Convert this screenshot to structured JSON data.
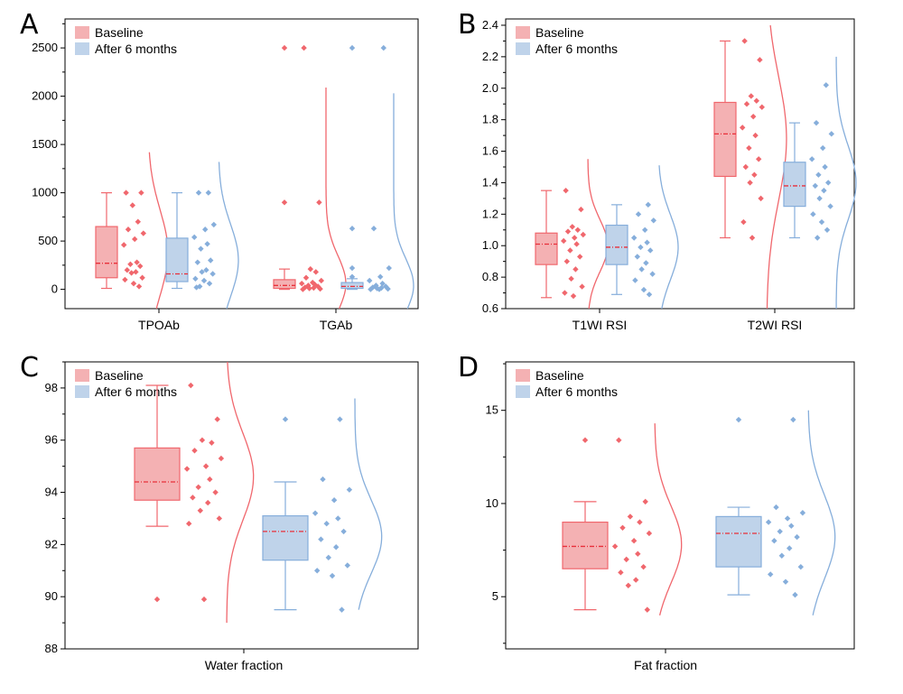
{
  "colors": {
    "baseline_fill": "#f4b1b3",
    "baseline_edge": "#f0676d",
    "after_fill": "#bfd3ea",
    "after_edge": "#86aedb",
    "median_line": "#e8303a",
    "axis": "#000000"
  },
  "legend": {
    "baseline": "Baseline",
    "after": "After 6 months"
  },
  "chart_data": [
    {
      "panel": "A",
      "type": "box",
      "categories": [
        "TPOAb",
        "TGAb"
      ],
      "ylim": [
        -200,
        2800
      ],
      "yticks": [
        0,
        500,
        1000,
        1500,
        2000,
        2500
      ],
      "series": [
        {
          "name": "Baseline",
          "groups": [
            {
              "box": {
                "whislo": 10,
                "q1": 120,
                "med": 270,
                "q3": 650,
                "whishi": 1000,
                "mean": 380
              },
              "points": [
                1000,
                1000,
                870,
                700,
                620,
                580,
                520,
                460,
                280,
                260,
                240,
                200,
                180,
                170,
                120,
                100,
                60,
                30
              ],
              "density_max": 1420
            },
            {
              "box": {
                "whislo": 0,
                "q1": 10,
                "med": 40,
                "q3": 100,
                "whishi": 210,
                "mean": 60
              },
              "points": [
                2500,
                900,
                210,
                180,
                120,
                90,
                70,
                60,
                50,
                40,
                30,
                20,
                15,
                10,
                5,
                0
              ],
              "density_max": 2090
            }
          ]
        },
        {
          "name": "After 6 months",
          "groups": [
            {
              "box": {
                "whislo": 10,
                "q1": 80,
                "med": 160,
                "q3": 530,
                "whishi": 1000,
                "mean": 300
              },
              "points": [
                1000,
                1000,
                670,
                620,
                540,
                470,
                420,
                300,
                280,
                200,
                180,
                160,
                110,
                90,
                60,
                30,
                20
              ],
              "density_max": 1320
            },
            {
              "box": {
                "whislo": 0,
                "q1": 10,
                "med": 30,
                "q3": 70,
                "whishi": 110,
                "mean": 40
              },
              "points": [
                2500,
                630,
                220,
                130,
                90,
                60,
                40,
                30,
                20,
                15,
                10,
                5,
                0,
                0
              ],
              "density_max": 2030
            }
          ]
        }
      ]
    },
    {
      "panel": "B",
      "type": "box",
      "categories": [
        "T1WI RSI",
        "T2WI RSI"
      ],
      "ylim": [
        0.6,
        2.44
      ],
      "yticks": [
        0.6,
        0.8,
        1.0,
        1.2,
        1.4,
        1.6,
        1.8,
        2.0,
        2.2,
        2.4
      ],
      "series": [
        {
          "name": "Baseline",
          "groups": [
            {
              "box": {
                "whislo": 0.67,
                "q1": 0.88,
                "med": 1.01,
                "q3": 1.08,
                "whishi": 1.35,
                "mean": 1.0
              },
              "points": [
                1.35,
                1.23,
                1.12,
                1.1,
                1.09,
                1.07,
                1.05,
                1.03,
                1.01,
                0.97,
                0.93,
                0.9,
                0.85,
                0.79,
                0.74,
                0.7,
                0.68
              ],
              "density_max": 1.55
            },
            {
              "box": {
                "whislo": 1.05,
                "q1": 1.44,
                "med": 1.71,
                "q3": 1.91,
                "whishi": 2.3,
                "mean": 1.68
              },
              "points": [
                2.3,
                2.18,
                1.95,
                1.92,
                1.9,
                1.88,
                1.82,
                1.75,
                1.7,
                1.62,
                1.55,
                1.5,
                1.45,
                1.4,
                1.3,
                1.15,
                1.05
              ],
              "density_max": 2.4
            }
          ]
        },
        {
          "name": "After 6 months",
          "groups": [
            {
              "box": {
                "whislo": 0.69,
                "q1": 0.88,
                "med": 0.99,
                "q3": 1.13,
                "whishi": 1.26,
                "mean": 0.99
              },
              "points": [
                1.26,
                1.2,
                1.16,
                1.1,
                1.05,
                1.02,
                0.99,
                0.97,
                0.93,
                0.89,
                0.85,
                0.82,
                0.78,
                0.72,
                0.69
              ],
              "density_max": 1.51
            },
            {
              "box": {
                "whislo": 1.05,
                "q1": 1.25,
                "med": 1.38,
                "q3": 1.53,
                "whishi": 1.78,
                "mean": 1.4
              },
              "points": [
                2.02,
                1.78,
                1.71,
                1.62,
                1.55,
                1.5,
                1.45,
                1.4,
                1.38,
                1.35,
                1.3,
                1.25,
                1.2,
                1.15,
                1.1,
                1.05
              ],
              "density_max": 2.2
            }
          ]
        }
      ]
    },
    {
      "panel": "C",
      "type": "box",
      "categories": [
        "Water fraction"
      ],
      "ylim": [
        88,
        99
      ],
      "yticks": [
        88,
        90,
        92,
        94,
        96,
        98
      ],
      "series": [
        {
          "name": "Baseline",
          "groups": [
            {
              "box": {
                "whislo": 92.7,
                "q1": 93.7,
                "med": 94.4,
                "q3": 95.7,
                "whishi": 98.1,
                "mean": 94.6
              },
              "points": [
                98.1,
                96.8,
                96.0,
                95.9,
                95.6,
                95.3,
                95.0,
                94.9,
                94.5,
                94.2,
                94.0,
                93.8,
                93.6,
                93.3,
                93.0,
                92.8,
                89.9
              ],
              "density_max": 99.0,
              "density_min": 89.0,
              "outliers": [
                89.9
              ]
            }
          ]
        },
        {
          "name": "After 6 months",
          "groups": [
            {
              "box": {
                "whislo": 89.5,
                "q1": 91.4,
                "med": 92.5,
                "q3": 93.1,
                "whishi": 94.4,
                "mean": 92.3
              },
              "points": [
                96.8,
                94.5,
                94.1,
                93.7,
                93.2,
                93.0,
                92.8,
                92.5,
                92.2,
                91.9,
                91.5,
                91.2,
                91.0,
                90.8,
                89.5
              ],
              "density_max": 97.6,
              "density_min": 89.5,
              "outliers": [
                96.8
              ]
            }
          ]
        }
      ]
    },
    {
      "panel": "D",
      "type": "box",
      "categories": [
        "Fat fraction"
      ],
      "ylim": [
        2.2,
        17.6
      ],
      "yticks": [
        5,
        10,
        15
      ],
      "series": [
        {
          "name": "Baseline",
          "groups": [
            {
              "box": {
                "whislo": 4.3,
                "q1": 6.5,
                "med": 7.7,
                "q3": 9.0,
                "whishi": 10.1,
                "mean": 7.8
              },
              "points": [
                13.4,
                10.1,
                9.3,
                9.0,
                8.7,
                8.4,
                8.0,
                7.7,
                7.3,
                7.0,
                6.6,
                6.3,
                5.9,
                5.6,
                4.3
              ],
              "density_max": 14.3,
              "density_min": 4.0,
              "outliers": [
                13.4
              ]
            }
          ]
        },
        {
          "name": "After 6 months",
          "groups": [
            {
              "box": {
                "whislo": 5.1,
                "q1": 6.6,
                "med": 8.4,
                "q3": 9.3,
                "whishi": 9.8,
                "mean": 8.2
              },
              "points": [
                14.5,
                9.8,
                9.5,
                9.2,
                9.0,
                8.8,
                8.5,
                8.2,
                8.0,
                7.6,
                7.2,
                6.6,
                6.2,
                5.8,
                5.1
              ],
              "density_max": 15.0,
              "density_min": 4.0,
              "outliers": [
                14.5
              ]
            }
          ]
        }
      ]
    }
  ],
  "panels": [
    {
      "label": "A"
    },
    {
      "label": "B"
    },
    {
      "label": "C"
    },
    {
      "label": "D"
    }
  ]
}
